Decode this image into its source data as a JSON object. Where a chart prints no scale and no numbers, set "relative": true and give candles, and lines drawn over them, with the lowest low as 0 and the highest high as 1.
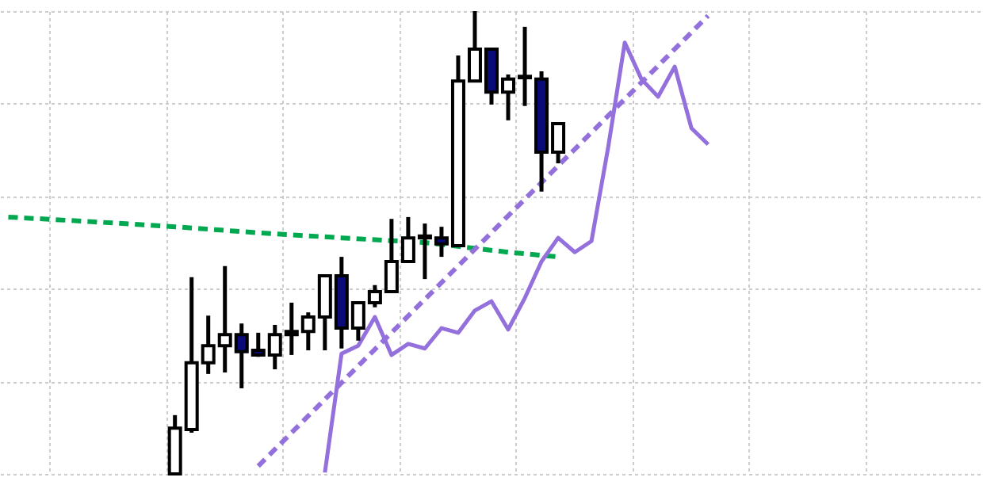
{
  "chart_data": {
    "type": "candlestick",
    "relative": true,
    "grid": true,
    "categories": [
      null,
      null,
      null,
      null,
      null,
      null,
      null,
      null,
      null,
      null,
      null,
      null,
      null,
      null,
      null,
      null,
      null,
      null,
      null,
      null,
      null,
      null,
      null,
      null,
      null,
      null,
      null,
      null,
      null,
      null,
      null,
      null,
      null,
      null,
      null,
      null,
      null,
      null,
      null,
      null,
      null,
      null,
      null,
      null,
      null,
      null,
      null,
      null,
      null,
      null,
      null,
      null,
      null,
      null,
      null,
      null,
      null,
      null,
      null
    ],
    "series": [
      {
        "type": "line",
        "color": "#00a84f",
        "line_style": "dashed",
        "values": [
          0.555,
          null,
          null,
          null,
          null,
          0.545,
          null,
          null,
          null,
          null,
          0.534,
          null,
          null,
          null,
          null,
          0.521,
          null,
          null,
          null,
          null,
          0.51,
          null,
          null,
          null,
          null,
          0.5,
          null,
          null,
          null,
          null,
          0.479,
          null,
          null,
          0.469,
          null,
          null,
          null,
          null,
          null,
          null,
          null,
          null,
          null,
          null,
          null,
          null,
          null,
          null,
          null,
          null,
          null,
          null,
          null,
          null,
          null,
          null,
          null,
          null,
          null
        ]
      },
      {
        "type": "line",
        "color": "#9370db",
        "line_style": "solid",
        "values": [
          null,
          null,
          null,
          null,
          null,
          null,
          null,
          null,
          null,
          null,
          null,
          null,
          null,
          null,
          null,
          null,
          null,
          null,
          null,
          0.003,
          0.26,
          0.277,
          0.339,
          0.257,
          0.281,
          0.271,
          0.315,
          0.305,
          0.353,
          0.373,
          0.312,
          0.38,
          0.459,
          0.51,
          0.479,
          0.503,
          0.705,
          0.932,
          0.853,
          0.815,
          0.88,
          0.747,
          0.712,
          null,
          null,
          null,
          null,
          null,
          null,
          null,
          null,
          null,
          null,
          null,
          null,
          null,
          null,
          null,
          null
        ]
      },
      {
        "type": "line",
        "color": "#9370db",
        "line_style": "dashed",
        "values": [
          null,
          null,
          null,
          null,
          null,
          null,
          null,
          null,
          null,
          null,
          null,
          null,
          null,
          null,
          null,
          0.017,
          null,
          null,
          null,
          null,
          null,
          null,
          null,
          null,
          null,
          null,
          null,
          null,
          null,
          null,
          null,
          null,
          null,
          null,
          null,
          null,
          null,
          null,
          null,
          null,
          null,
          null,
          0.99,
          null,
          null,
          null,
          null,
          null,
          null,
          null,
          null,
          null,
          null,
          null,
          null,
          null,
          null,
          null,
          null
        ]
      },
      {
        "ohlc": [
          null,
          null,
          null,
          null,
          null,
          null,
          null,
          null,
          null,
          null,
          [
            0,
            0.127,
            0,
            0.099
          ],
          [
            0.096,
            0.425,
            0.089,
            0.24
          ],
          [
            0.24,
            0.342,
            0.216,
            0.277
          ],
          [
            0.277,
            0.449,
            0.219,
            0.301
          ],
          [
            0.301,
            0.325,
            0.185,
            0.264
          ],
          [
            0.267,
            0.305,
            0.253,
            0.257
          ],
          [
            0.257,
            0.322,
            0.226,
            0.301
          ],
          [
            0.308,
            0.37,
            0.257,
            0.301
          ],
          [
            0.308,
            0.349,
            0.267,
            0.339
          ],
          [
            0.339,
            0.428,
            0.267,
            0.428
          ],
          [
            0.428,
            0.469,
            0.271,
            0.315
          ],
          [
            0.315,
            0.37,
            0.288,
            0.37
          ],
          [
            0.37,
            0.408,
            0.36,
            0.394
          ],
          [
            0.394,
            0.551,
            0.394,
            0.459
          ],
          [
            0.459,
            0.555,
            0.459,
            0.51
          ],
          [
            0.51,
            0.541,
            0.421,
            0.514
          ],
          [
            0.51,
            0.534,
            0.469,
            0.497
          ],
          [
            0.493,
            0.904,
            0.493,
            0.849
          ],
          [
            0.849,
            1,
            0.849,
            0.918
          ],
          [
            0.918,
            0.918,
            0.798,
            0.825
          ],
          [
            0.825,
            0.863,
            0.764,
            0.853
          ],
          [
            0.856,
            0.966,
            0.795,
            0.859
          ],
          [
            0.853,
            0.87,
            0.61,
            0.695
          ],
          [
            0.695,
            0.757,
            0.671,
            0.757
          ],
          null,
          null,
          null,
          null,
          null,
          null,
          null,
          null,
          null,
          null,
          null,
          null,
          null,
          null,
          null,
          null,
          null,
          null,
          null,
          null,
          null,
          null,
          null,
          null,
          null
        ],
        "colors": [
          null,
          null,
          null,
          null,
          null,
          null,
          null,
          null,
          null,
          null,
          "#ffffff",
          "#ffffff",
          "#ffffff",
          "#ffffff",
          "#0a0a78",
          "#0a0a78",
          "#ffffff",
          "#0a0a78",
          "#ffffff",
          "#ffffff",
          "#0a0a78",
          "#ffffff",
          "#ffffff",
          "#ffffff",
          "#ffffff",
          "#ffffff",
          "#0a0a78",
          "#ffffff",
          "#ffffff",
          "#0a0a78",
          "#ffffff",
          "#ffffff",
          "#0a0a78",
          "#ffffff",
          null,
          null,
          null,
          null,
          null,
          null,
          null,
          null,
          null,
          null,
          null,
          null,
          null,
          null,
          null,
          null,
          null,
          null,
          null,
          null,
          null,
          null,
          null,
          null,
          null
        ]
      }
    ]
  }
}
